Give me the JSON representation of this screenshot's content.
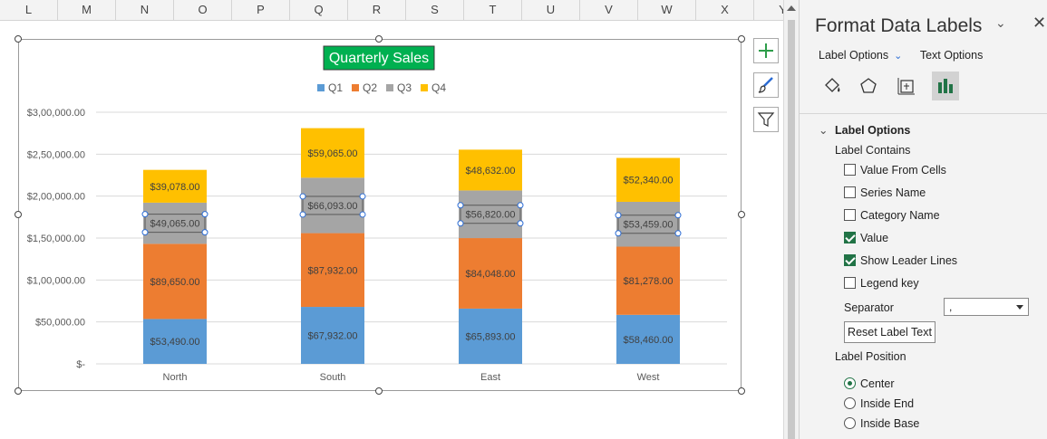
{
  "spreadsheet": {
    "columns": [
      "L",
      "M",
      "N",
      "O",
      "P",
      "Q",
      "R",
      "S",
      "T",
      "U",
      "V",
      "W",
      "X",
      "Y"
    ]
  },
  "chart_data": {
    "type": "bar",
    "stacked": true,
    "title": "Quarterly Sales",
    "categories": [
      "North",
      "South",
      "East",
      "West"
    ],
    "series": [
      {
        "name": "Q1",
        "color": "#5b9bd5",
        "values": [
          53490,
          67932,
          65893,
          58460
        ],
        "labels": [
          "$53,490.00",
          "$67,932.00",
          "$65,893.00",
          "$58,460.00"
        ]
      },
      {
        "name": "Q2",
        "color": "#ed7d31",
        "values": [
          89650,
          87932,
          84048,
          81278
        ],
        "labels": [
          "$89,650.00",
          "$87,932.00",
          "$84,048.00",
          "$81,278.00"
        ]
      },
      {
        "name": "Q3",
        "color": "#a5a5a5",
        "values": [
          49065,
          66093,
          56820,
          53459
        ],
        "labels": [
          "$49,065.00",
          "$66,093.00",
          "$56,820.00",
          "$53,459.00"
        ]
      },
      {
        "name": "Q4",
        "color": "#ffc000",
        "values": [
          39078,
          59065,
          48632,
          52340
        ],
        "labels": [
          "$39,078.00",
          "$59,065.00",
          "$48,632.00",
          "$52,340.00"
        ]
      }
    ],
    "ylim": [
      0,
      300000
    ],
    "yticks": [
      {
        "value": 0,
        "label": "$-"
      },
      {
        "value": 50000,
        "label": "$50,000.00"
      },
      {
        "value": 100000,
        "label": "$1,00,000.00"
      },
      {
        "value": 150000,
        "label": "$1,50,000.00"
      },
      {
        "value": 200000,
        "label": "$2,00,000.00"
      },
      {
        "value": 250000,
        "label": "$2,50,000.00"
      },
      {
        "value": 300000,
        "label": "$3,00,000.00"
      }
    ],
    "grid": true,
    "legend_position": "top",
    "selected_series": "Q3",
    "title_bg": "#00b050"
  },
  "panel": {
    "title": "Format Data Labels",
    "tab_label_options": "Label Options",
    "tab_text_options": "Text Options",
    "section_label_options": "Label Options",
    "label_contains": "Label Contains",
    "checkboxes": [
      {
        "label": "Value From Cells",
        "checked": false
      },
      {
        "label": "Series Name",
        "checked": false
      },
      {
        "label": "Category Name",
        "checked": false
      },
      {
        "label": "Value",
        "checked": true
      },
      {
        "label": "Show Leader Lines",
        "checked": true
      },
      {
        "label": "Legend key",
        "checked": false
      }
    ],
    "separator_label": "Separator",
    "separator_value": ",",
    "reset_button": "Reset Label Text",
    "label_position": "Label Position",
    "radios": [
      {
        "label": "Center",
        "selected": true
      },
      {
        "label": "Inside End",
        "selected": false
      },
      {
        "label": "Inside Base",
        "selected": false
      }
    ]
  }
}
